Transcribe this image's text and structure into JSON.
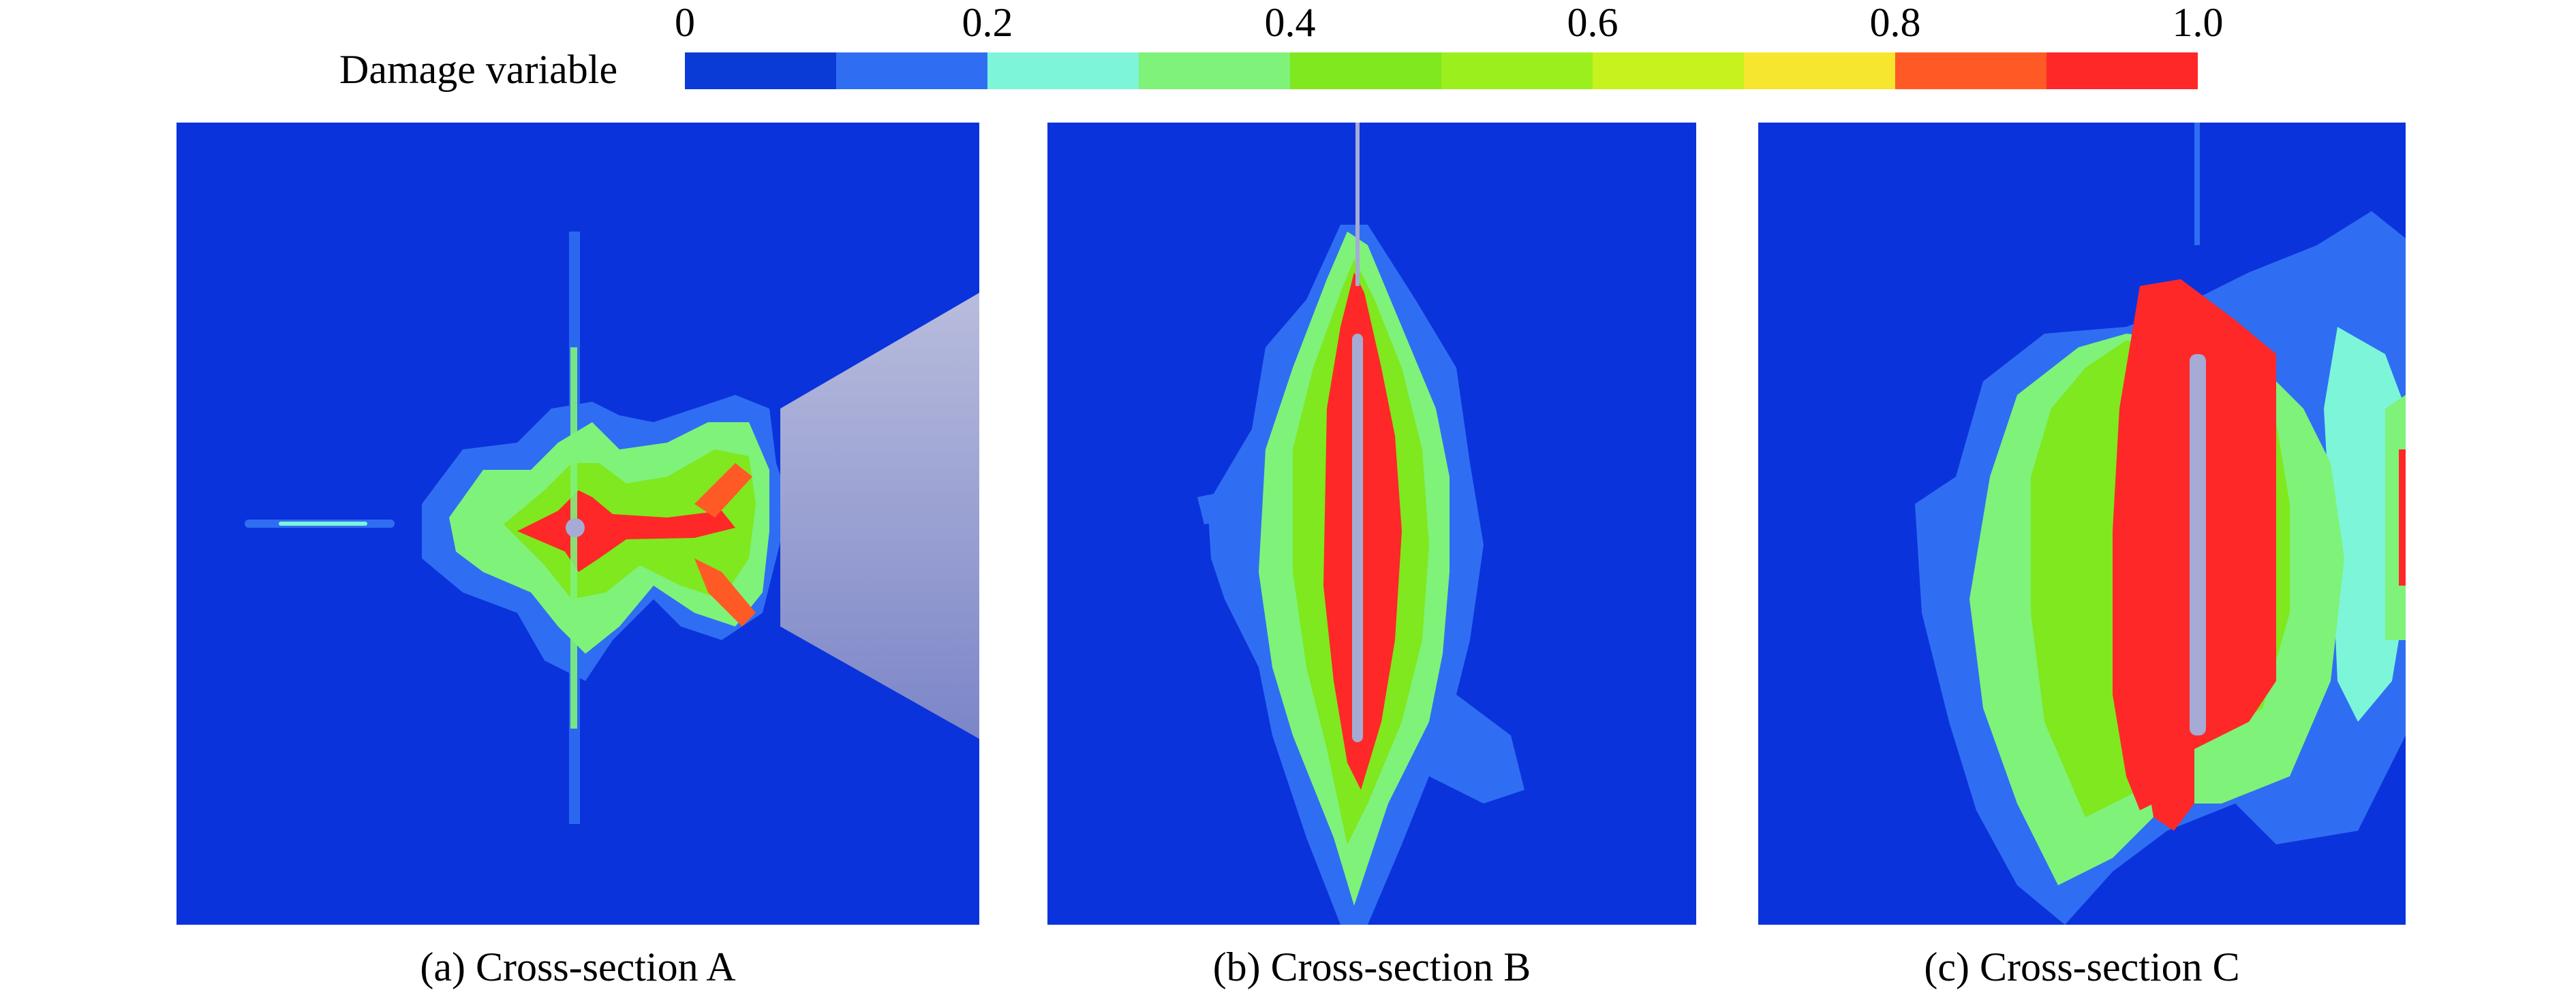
{
  "legend": {
    "title": "Damage variable",
    "tick_labels": [
      "0",
      "0.2",
      "0.4",
      "0.6",
      "0.8",
      "1.0"
    ],
    "colors": [
      "#0b3bd6",
      "#2f6ef2",
      "#7df5d9",
      "#7ff27a",
      "#7fe81f",
      "#9bef1d",
      "#c6f21e",
      "#f6e62d",
      "#ff5a26",
      "#ff2828"
    ]
  },
  "colors": {
    "background": "#0b33dc",
    "void": "#a5abd4",
    "blue_1": "#2f6ef2",
    "cyan_2": "#7df5d9",
    "green_3": "#7ff27a",
    "green_4": "#7fe81f",
    "lime_6": "#c6f21e",
    "orange_9": "#ff5a26",
    "red_10": "#ff2828"
  },
  "panels": [
    {
      "caption": "(a) Cross-section A"
    },
    {
      "caption": "(b) Cross-section B"
    },
    {
      "caption": "(c) Cross-section C"
    }
  ]
}
